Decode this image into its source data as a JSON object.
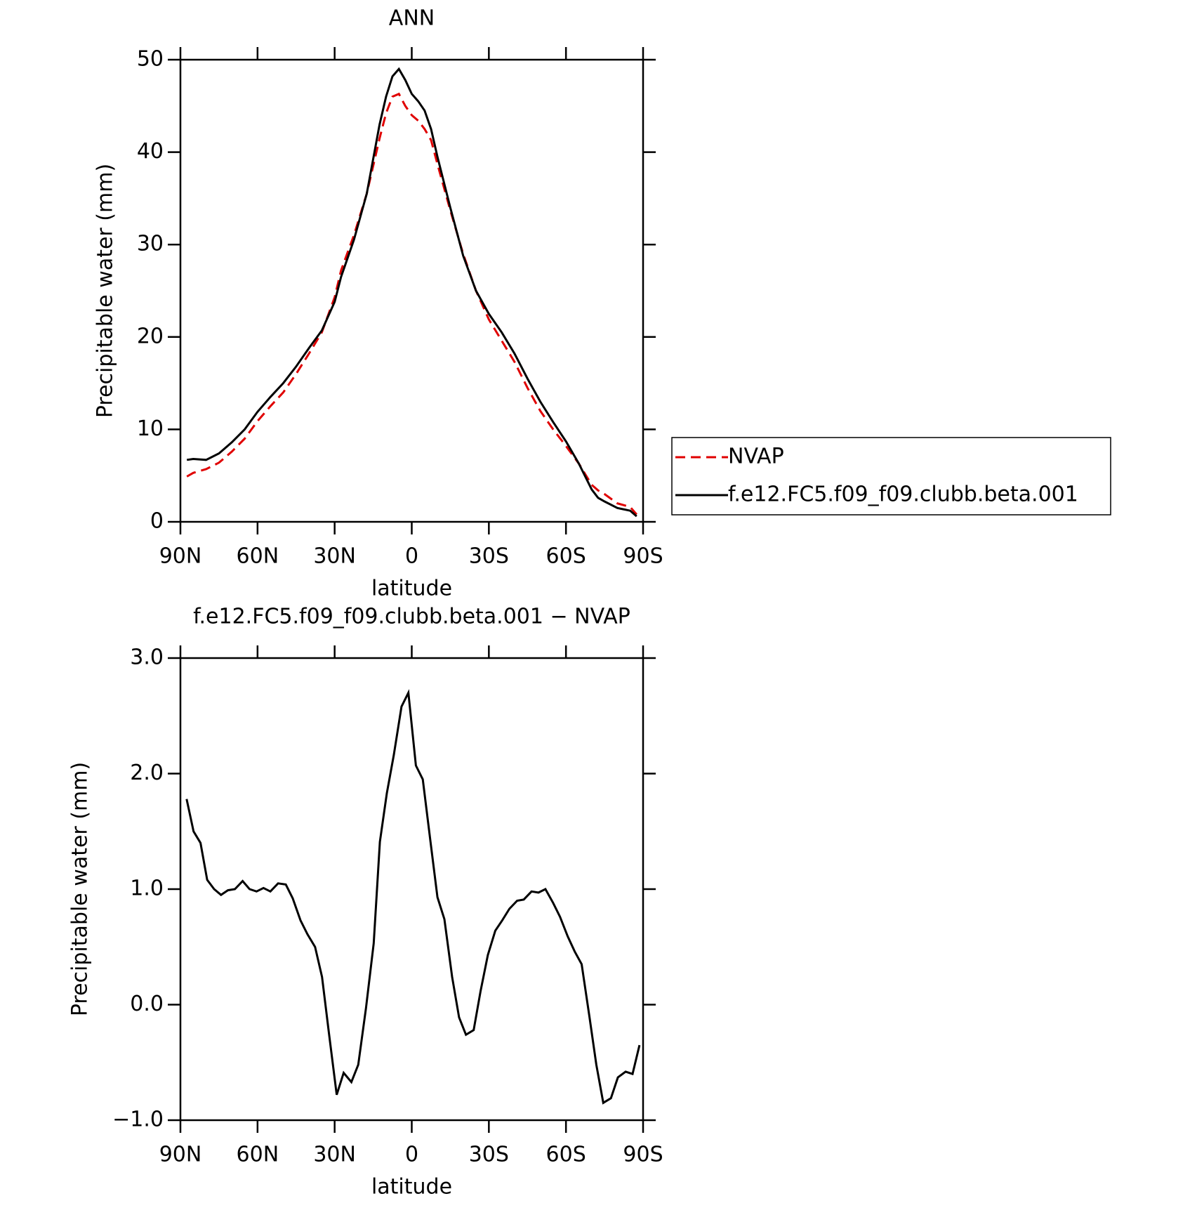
{
  "chart_data": [
    {
      "type": "line",
      "title": "ANN",
      "xlabel": "latitude",
      "ylabel": "Precipitable water (mm)",
      "x": [
        87.5,
        85,
        80,
        75,
        70,
        65,
        60,
        55,
        50,
        45,
        40,
        35,
        30,
        27.5,
        22.5,
        17.5,
        12.5,
        10,
        7.5,
        5,
        2.5,
        0,
        -2.5,
        -5,
        -7.5,
        -10,
        -15,
        -20,
        -25,
        -30,
        -35,
        -40,
        -45,
        -50,
        -55,
        -60,
        -65,
        -70,
        -72.5,
        -75,
        -80,
        -85,
        -87.5
      ],
      "series": [
        {
          "name": "NVAP",
          "color": "#e00000",
          "dashed": true,
          "values": [
            4.9,
            5.3,
            5.7,
            6.4,
            7.6,
            9.0,
            10.9,
            12.5,
            14.0,
            16.0,
            18.2,
            20.5,
            24.3,
            27.2,
            31.0,
            35.5,
            41.5,
            44.2,
            46.0,
            46.3,
            45.0,
            44.0,
            43.4,
            42.5,
            41.3,
            38.7,
            33.7,
            29.0,
            25.0,
            21.9,
            19.6,
            17.3,
            14.5,
            12.0,
            10.0,
            8.2,
            6.3,
            4.0,
            3.4,
            3.0,
            2.0,
            1.6,
            0.8
          ]
        },
        {
          "name": "f.e12.FC5.f09_f09.clubb.beta.001",
          "color": "#000000",
          "dashed": false,
          "values": [
            6.7,
            6.8,
            6.7,
            7.4,
            8.6,
            10.0,
            11.9,
            13.5,
            15.0,
            16.8,
            18.8,
            20.7,
            23.8,
            26.5,
            30.5,
            35.5,
            43.0,
            46.0,
            48.2,
            49.0,
            47.8,
            46.3,
            45.5,
            44.5,
            42.5,
            39.5,
            34.0,
            28.8,
            25.0,
            22.5,
            20.5,
            18.2,
            15.5,
            13.0,
            10.8,
            8.7,
            6.3,
            3.5,
            2.6,
            2.2,
            1.5,
            1.2,
            0.6
          ]
        }
      ],
      "xlim": [
        90,
        -90
      ],
      "xticks": [
        {
          "value": 90,
          "label": "90N"
        },
        {
          "value": 60,
          "label": "60N"
        },
        {
          "value": 30,
          "label": "30N"
        },
        0,
        {
          "value": -30,
          "label": "30S"
        },
        {
          "value": -60,
          "label": "60S"
        },
        {
          "value": -90,
          "label": "90S"
        }
      ],
      "ylim": [
        0,
        50
      ],
      "yticks": [
        0,
        10,
        20,
        30,
        40,
        50
      ],
      "legend": "right"
    },
    {
      "type": "line",
      "title": "f.e12.FC5.f09_f09.clubb.beta.001 − NVAP",
      "xlabel": "latitude",
      "ylabel": "Precipitable water (mm)",
      "x": [
        87.6,
        84.9,
        82.2,
        79.6,
        76.9,
        74.2,
        71.5,
        68.8,
        65.8,
        63.1,
        60.4,
        57.7,
        55.0,
        52.0,
        49.0,
        46.3,
        43.3,
        40.6,
        37.6,
        34.9,
        32.2,
        29.2,
        26.5,
        23.5,
        20.8,
        17.8,
        14.8,
        12.4,
        9.7,
        7.0,
        4.0,
        1.3,
        -1.6,
        -4.3,
        -7.3,
        -10.0,
        -12.7,
        -15.7,
        -18.4,
        -21.1,
        -24.1,
        -26.8,
        -29.6,
        -32.5,
        -35.2,
        -38.0,
        -41.0,
        -43.6,
        -46.6,
        -49.3,
        -52.0,
        -55.0,
        -57.7,
        -60.7,
        -63.4,
        -66.1,
        -69.1,
        -71.8,
        -74.5,
        -77.5,
        -80.2,
        -83.2,
        -85.9,
        -88.6
      ],
      "series": [
        {
          "name": "f.e12.FC5.f09_f09.clubb.beta.001 − NVAP",
          "color": "#000000",
          "dashed": false,
          "values": [
            1.78,
            1.5,
            1.4,
            1.08,
            1.0,
            0.95,
            0.99,
            1.0,
            1.07,
            1.0,
            0.98,
            1.01,
            0.98,
            1.05,
            1.04,
            0.92,
            0.73,
            0.61,
            0.5,
            0.24,
            -0.25,
            -0.78,
            -0.59,
            -0.67,
            -0.52,
            -0.03,
            0.53,
            1.41,
            1.83,
            2.16,
            2.58,
            2.7,
            2.07,
            1.95,
            1.41,
            0.93,
            0.74,
            0.24,
            -0.11,
            -0.26,
            -0.22,
            0.12,
            0.43,
            0.64,
            0.73,
            0.83,
            0.9,
            0.91,
            0.98,
            0.97,
            1.0,
            0.88,
            0.76,
            0.59,
            0.46,
            0.35,
            -0.1,
            -0.52,
            -0.85,
            -0.81,
            -0.63,
            -0.58,
            -0.6,
            -0.35
          ]
        }
      ],
      "xlim": [
        90,
        -90
      ],
      "xticks": [
        {
          "value": 90,
          "label": "90N"
        },
        {
          "value": 60,
          "label": "60N"
        },
        {
          "value": 30,
          "label": "30N"
        },
        0,
        {
          "value": -30,
          "label": "30S"
        },
        {
          "value": -60,
          "label": "60S"
        },
        {
          "value": -90,
          "label": "90S"
        }
      ],
      "ylim": [
        -1,
        3
      ],
      "yticks": [
        {
          "value": -1,
          "label": "−1.0"
        },
        {
          "value": 0,
          "label": "0.0"
        },
        {
          "value": 1,
          "label": "1.0"
        },
        {
          "value": 2,
          "label": "2.0"
        },
        {
          "value": 3,
          "label": "3.0"
        }
      ]
    }
  ]
}
